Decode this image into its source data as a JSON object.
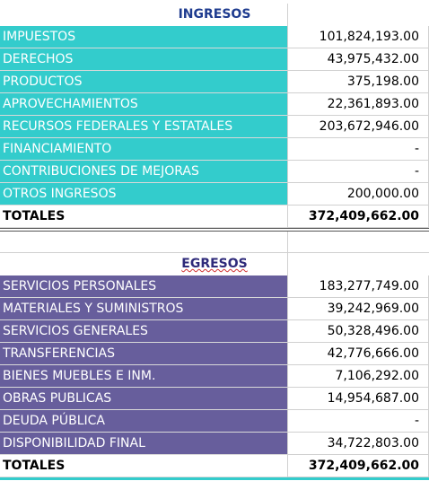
{
  "ingresos": {
    "title": "INGRESOS",
    "rows": [
      [
        "IMPUESTOS",
        "101,824,193.00"
      ],
      [
        "DERECHOS",
        "43,975,432.00"
      ],
      [
        "PRODUCTOS",
        "375,198.00"
      ],
      [
        "APROVECHAMIENTOS",
        "22,361,893.00"
      ],
      [
        "RECURSOS FEDERALES Y ESTATALES",
        "203,672,946.00"
      ],
      [
        "FINANCIAMIENTO",
        "-"
      ],
      [
        "CONTRIBUCIONES DE MEJORAS",
        "-"
      ],
      [
        "OTROS INGRESOS",
        "200,000.00"
      ]
    ],
    "total": [
      "TOTALES",
      "372,409,662.00"
    ]
  },
  "egresos": {
    "title": "EGRESOS",
    "rows": [
      [
        "SERVICIOS PERSONALES",
        "183,277,749.00"
      ],
      [
        "MATERIALES Y SUMINISTROS",
        "39,242,969.00"
      ],
      [
        "SERVICIOS GENERALES",
        "50,328,496.00"
      ],
      [
        "TRANSFERENCIAS",
        "42,776,666.00"
      ],
      [
        "BIENES MUEBLES E INM.",
        "7,106,292.00"
      ],
      [
        "OBRAS PUBLICAS",
        "14,954,687.00"
      ],
      [
        "DEUDA PÚBLICA",
        "-"
      ],
      [
        "DISPONIBILIDAD FINAL",
        "34,722,803.00"
      ]
    ],
    "total": [
      "TOTALES",
      "372,409,662.00"
    ]
  }
}
